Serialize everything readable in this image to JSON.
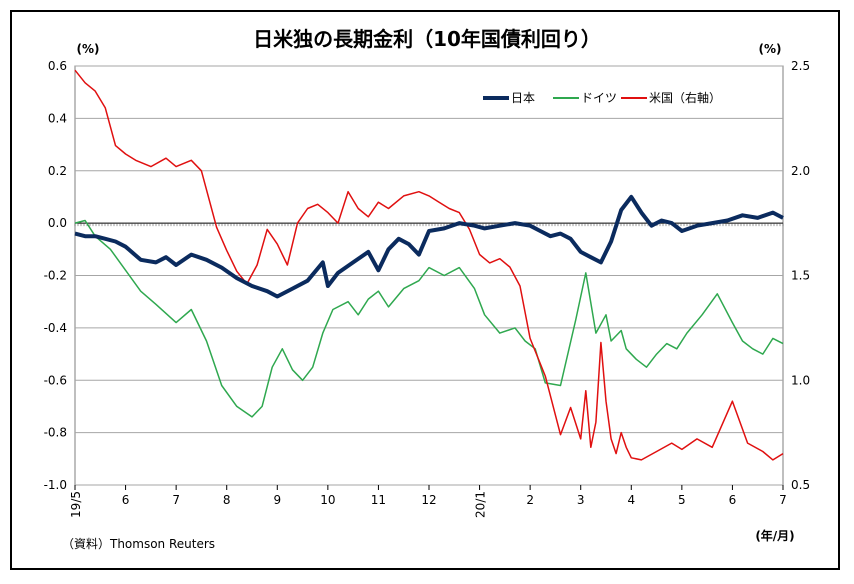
{
  "chart_data": {
    "type": "line",
    "title": "日米独の長期金利（10年国債利回り）",
    "left_unit": "(%)",
    "right_unit": "(%)",
    "x_unit": "(年/月)",
    "source": "（資料）Thomson Reuters",
    "ylim_left": [
      -1.0,
      0.6
    ],
    "ylim_right": [
      0.5,
      2.5
    ],
    "y_ticks_left": [
      "0.6",
      "0.4",
      "0.2",
      "0.0",
      "-0.2",
      "-0.4",
      "-0.6",
      "-0.8",
      "-1.0"
    ],
    "y_ticks_right": [
      "2.5",
      "2.0",
      "1.5",
      "1.0",
      "0.5"
    ],
    "x_ticks": [
      "19/5",
      "6",
      "7",
      "8",
      "9",
      "10",
      "11",
      "12",
      "20/1",
      "2",
      "3",
      "4",
      "5",
      "6",
      "7"
    ],
    "x_tick_rotated": [
      true,
      false,
      false,
      false,
      false,
      false,
      false,
      false,
      true,
      false,
      false,
      false,
      false,
      false,
      false
    ],
    "grid": true,
    "legend_position": "top-right",
    "series": [
      {
        "name": "日本",
        "axis": "left",
        "color": "#0b2b5e",
        "x": [
          0.0,
          0.2,
          0.4,
          0.6,
          0.8,
          1.0,
          1.3,
          1.6,
          1.8,
          2.0,
          2.3,
          2.6,
          2.9,
          3.2,
          3.5,
          3.8,
          4.0,
          4.3,
          4.6,
          4.9,
          5.0,
          5.2,
          5.5,
          5.8,
          6.0,
          6.2,
          6.4,
          6.6,
          6.8,
          7.0,
          7.3,
          7.6,
          7.9,
          8.1,
          8.4,
          8.7,
          9.0,
          9.2,
          9.4,
          9.6,
          9.8,
          10.0,
          10.2,
          10.4,
          10.6,
          10.8,
          11.0,
          11.2,
          11.4,
          11.6,
          11.8,
          12.0,
          12.3,
          12.6,
          12.9,
          13.2,
          13.5,
          13.8,
          14.0
        ],
        "values": [
          -0.04,
          -0.05,
          -0.05,
          -0.06,
          -0.07,
          -0.09,
          -0.14,
          -0.15,
          -0.13,
          -0.16,
          -0.12,
          -0.14,
          -0.17,
          -0.21,
          -0.24,
          -0.26,
          -0.28,
          -0.25,
          -0.22,
          -0.15,
          -0.24,
          -0.19,
          -0.15,
          -0.11,
          -0.18,
          -0.1,
          -0.06,
          -0.08,
          -0.12,
          -0.03,
          -0.02,
          0.0,
          -0.01,
          -0.02,
          -0.01,
          0.0,
          -0.01,
          -0.03,
          -0.05,
          -0.04,
          -0.06,
          -0.11,
          -0.13,
          -0.15,
          -0.07,
          0.05,
          0.1,
          0.04,
          -0.01,
          0.01,
          0.0,
          -0.03,
          -0.01,
          0.0,
          0.01,
          0.03,
          0.02,
          0.04,
          0.02
        ]
      },
      {
        "name": "ドイツ",
        "axis": "left",
        "color": "#2fa84f",
        "x": [
          0.0,
          0.2,
          0.4,
          0.7,
          1.0,
          1.3,
          1.6,
          2.0,
          2.3,
          2.6,
          2.9,
          3.2,
          3.5,
          3.7,
          3.9,
          4.1,
          4.3,
          4.5,
          4.7,
          4.9,
          5.1,
          5.4,
          5.6,
          5.8,
          6.0,
          6.2,
          6.5,
          6.8,
          7.0,
          7.3,
          7.6,
          7.9,
          8.1,
          8.4,
          8.7,
          8.9,
          9.1,
          9.3,
          9.6,
          9.9,
          10.1,
          10.3,
          10.5,
          10.6,
          10.8,
          10.9,
          11.1,
          11.3,
          11.5,
          11.7,
          11.9,
          12.1,
          12.4,
          12.7,
          13.0,
          13.2,
          13.4,
          13.6,
          13.8,
          14.0
        ],
        "values": [
          0.0,
          0.01,
          -0.05,
          -0.1,
          -0.18,
          -0.26,
          -0.31,
          -0.38,
          -0.33,
          -0.45,
          -0.62,
          -0.7,
          -0.74,
          -0.7,
          -0.55,
          -0.48,
          -0.56,
          -0.6,
          -0.55,
          -0.42,
          -0.33,
          -0.3,
          -0.35,
          -0.29,
          -0.26,
          -0.32,
          -0.25,
          -0.22,
          -0.17,
          -0.2,
          -0.17,
          -0.25,
          -0.35,
          -0.42,
          -0.4,
          -0.45,
          -0.48,
          -0.61,
          -0.62,
          -0.37,
          -0.19,
          -0.42,
          -0.35,
          -0.45,
          -0.41,
          -0.48,
          -0.52,
          -0.55,
          -0.5,
          -0.46,
          -0.48,
          -0.42,
          -0.35,
          -0.27,
          -0.38,
          -0.45,
          -0.48,
          -0.5,
          -0.44,
          -0.46
        ]
      },
      {
        "name": "米国（右軸）",
        "axis": "right",
        "color": "#e01010",
        "x": [
          0.0,
          0.2,
          0.4,
          0.6,
          0.8,
          1.0,
          1.2,
          1.5,
          1.8,
          2.0,
          2.3,
          2.5,
          2.8,
          3.0,
          3.2,
          3.4,
          3.6,
          3.8,
          4.0,
          4.2,
          4.4,
          4.6,
          4.8,
          5.0,
          5.2,
          5.4,
          5.6,
          5.8,
          6.0,
          6.2,
          6.5,
          6.8,
          7.0,
          7.2,
          7.4,
          7.6,
          7.8,
          8.0,
          8.2,
          8.4,
          8.6,
          8.8,
          9.0,
          9.3,
          9.6,
          9.8,
          10.0,
          10.1,
          10.2,
          10.3,
          10.4,
          10.5,
          10.6,
          10.7,
          10.8,
          10.9,
          11.0,
          11.2,
          11.5,
          11.8,
          12.0,
          12.3,
          12.6,
          13.0,
          13.3,
          13.6,
          13.8,
          14.0
        ],
        "values": [
          2.48,
          2.42,
          2.38,
          2.3,
          2.12,
          2.08,
          2.05,
          2.02,
          2.06,
          2.02,
          2.05,
          2.0,
          1.73,
          1.62,
          1.52,
          1.46,
          1.55,
          1.72,
          1.65,
          1.55,
          1.75,
          1.82,
          1.84,
          1.8,
          1.75,
          1.9,
          1.82,
          1.78,
          1.85,
          1.82,
          1.88,
          1.9,
          1.88,
          1.85,
          1.82,
          1.8,
          1.72,
          1.6,
          1.56,
          1.58,
          1.54,
          1.45,
          1.2,
          1.02,
          0.74,
          0.87,
          0.72,
          0.95,
          0.68,
          0.8,
          1.18,
          0.9,
          0.72,
          0.65,
          0.75,
          0.68,
          0.63,
          0.62,
          0.66,
          0.7,
          0.67,
          0.72,
          0.68,
          0.9,
          0.7,
          0.66,
          0.62,
          0.65
        ]
      }
    ]
  }
}
